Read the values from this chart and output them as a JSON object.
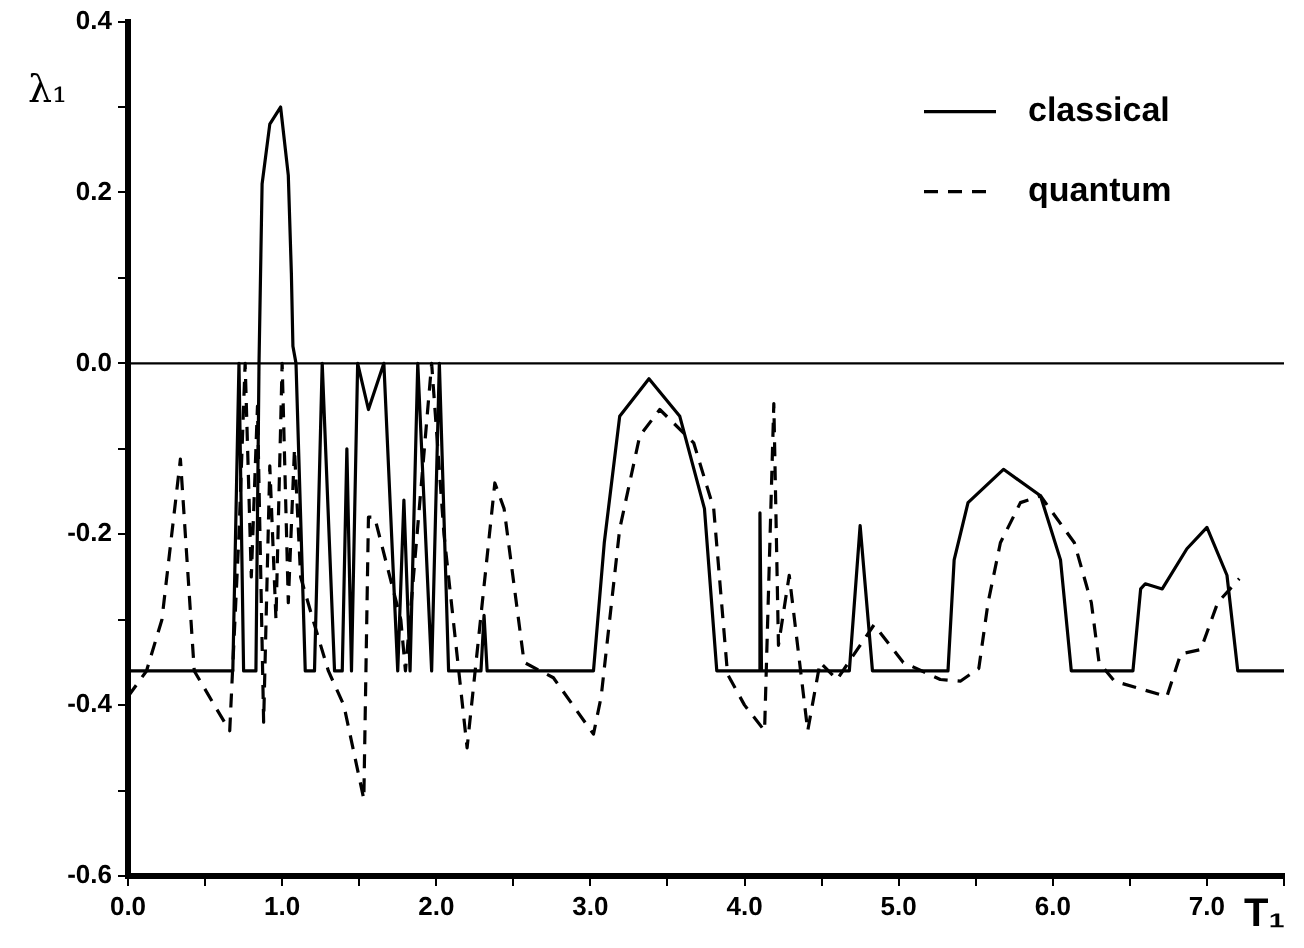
{
  "chart_data": {
    "type": "line",
    "xlabel": "T₁",
    "ylabel": "λ₁",
    "legend": "top right",
    "marker": "none",
    "grid": false,
    "xlim": [
      0,
      7.5
    ],
    "xticks": [
      {
        "value": 0,
        "label": "0.0"
      },
      {
        "value": 0.5,
        "label": null
      },
      {
        "value": 1,
        "label": "1.0"
      },
      {
        "value": 1.5,
        "label": null
      },
      {
        "value": 2,
        "label": "2.0"
      },
      {
        "value": 2.5,
        "label": null
      },
      {
        "value": 3,
        "label": "3.0"
      },
      {
        "value": 3.5,
        "label": null
      },
      {
        "value": 4,
        "label": "4.0"
      },
      {
        "value": 4.5,
        "label": null
      },
      {
        "value": 5,
        "label": "5.0"
      },
      {
        "value": 5.5,
        "label": null
      },
      {
        "value": 6,
        "label": "6.0"
      },
      {
        "value": 6.5,
        "label": null
      },
      {
        "value": 7,
        "label": "7.0"
      },
      {
        "value": 7.5,
        "label": null
      }
    ],
    "ylim": [
      -0.6,
      0.4
    ],
    "yticks": [
      {
        "value": -0.6,
        "label": "-0.6"
      },
      {
        "value": -0.5,
        "label": null
      },
      {
        "value": -0.4,
        "label": "-0.4"
      },
      {
        "value": -0.3,
        "label": null
      },
      {
        "value": -0.2,
        "label": "-0.2"
      },
      {
        "value": -0.1,
        "label": null
      },
      {
        "value": 0,
        "label": "0.0"
      },
      {
        "value": 0.1,
        "label": null
      },
      {
        "value": 0.2,
        "label": "0.2"
      },
      {
        "value": 0.3,
        "label": null
      },
      {
        "value": 0.4,
        "label": "0.4"
      }
    ],
    "ref_lines": [
      {
        "axis": "y",
        "value": 0,
        "color": "#000000",
        "line_style": "solid"
      }
    ],
    "series": [
      {
        "name": "classical",
        "color": "#000000",
        "line_style": "solid",
        "x": [
          0,
          0.68,
          0.72,
          0.75,
          0.83,
          0.85,
          0.87,
          0.92,
          0.99,
          1.04,
          1.06,
          1.07,
          1.09,
          1.15,
          1.21,
          1.26,
          1.34,
          1.39,
          1.42,
          1.45,
          1.49,
          1.56,
          1.66,
          1.75,
          1.79,
          1.83,
          1.88,
          1.97,
          2.02,
          2.08,
          2.29,
          2.31,
          2.33,
          3.02,
          3.09,
          3.19,
          3.38,
          3.58,
          3.74,
          3.82,
          4.09,
          4.1,
          4.11,
          4.68,
          4.75,
          4.83,
          5.32,
          5.36,
          5.45,
          5.68,
          5.92,
          6.05,
          6.12,
          6.52,
          6.57,
          6.6,
          6.71,
          6.87,
          7.0,
          7.13,
          7.2,
          7.5
        ],
        "values": [
          -0.36,
          -0.36,
          0,
          -0.36,
          -0.36,
          0,
          0.21,
          0.28,
          0.3,
          0.22,
          0.105,
          0.02,
          0,
          -0.36,
          -0.36,
          0,
          -0.36,
          -0.36,
          -0.1,
          -0.36,
          0,
          -0.054,
          0,
          -0.36,
          -0.16,
          -0.36,
          0,
          -0.36,
          0,
          -0.36,
          -0.36,
          -0.295,
          -0.36,
          -0.36,
          -0.21,
          -0.062,
          -0.018,
          -0.062,
          -0.17,
          -0.36,
          -0.36,
          -0.175,
          -0.36,
          -0.36,
          -0.19,
          -0.36,
          -0.36,
          -0.23,
          -0.163,
          -0.124,
          -0.155,
          -0.23,
          -0.36,
          -0.36,
          -0.264,
          -0.258,
          -0.264,
          -0.217,
          -0.192,
          -0.248,
          -0.36,
          -0.36
        ]
      },
      {
        "name": "quantum",
        "color": "#000000",
        "line_style": "dashed",
        "x": [
          0,
          0.12,
          0.22,
          0.34,
          0.43,
          0.56,
          0.66,
          0.72,
          0.76,
          0.8,
          0.84,
          0.88,
          0.92,
          0.96,
          1.0,
          1.04,
          1.08,
          1.12,
          1.2,
          1.3,
          1.4,
          1.53,
          1.56,
          1.6,
          1.77,
          1.8,
          1.97,
          2.05,
          2.2,
          2.38,
          2.44,
          2.57,
          2.76,
          3.02,
          3.07,
          3.19,
          3.32,
          3.45,
          3.67,
          3.8,
          3.89,
          4.0,
          4.13,
          4.19,
          4.22,
          4.29,
          4.41,
          4.49,
          4.6,
          4.84,
          5.03,
          5.27,
          5.4,
          5.52,
          5.58,
          5.66,
          5.79,
          5.92,
          6.14,
          6.25,
          6.3,
          6.4,
          6.74,
          6.83,
          6.96,
          7.07,
          7.21
        ],
        "values": [
          -0.39,
          -0.36,
          -0.3,
          -0.112,
          -0.36,
          -0.4,
          -0.43,
          -0.2,
          0,
          -0.25,
          -0.05,
          -0.42,
          -0.12,
          -0.3,
          0,
          -0.28,
          -0.1,
          -0.25,
          -0.3,
          -0.36,
          -0.4,
          -0.51,
          -0.18,
          -0.18,
          -0.3,
          -0.36,
          0,
          -0.2,
          -0.45,
          -0.14,
          -0.17,
          -0.35,
          -0.368,
          -0.434,
          -0.39,
          -0.194,
          -0.085,
          -0.054,
          -0.093,
          -0.17,
          -0.364,
          -0.4,
          -0.43,
          -0.047,
          -0.33,
          -0.248,
          -0.43,
          -0.35,
          -0.37,
          -0.306,
          -0.35,
          -0.37,
          -0.372,
          -0.357,
          -0.28,
          -0.21,
          -0.163,
          -0.155,
          -0.21,
          -0.28,
          -0.35,
          -0.372,
          -0.39,
          -0.34,
          -0.335,
          -0.28,
          -0.252
        ]
      }
    ]
  }
}
